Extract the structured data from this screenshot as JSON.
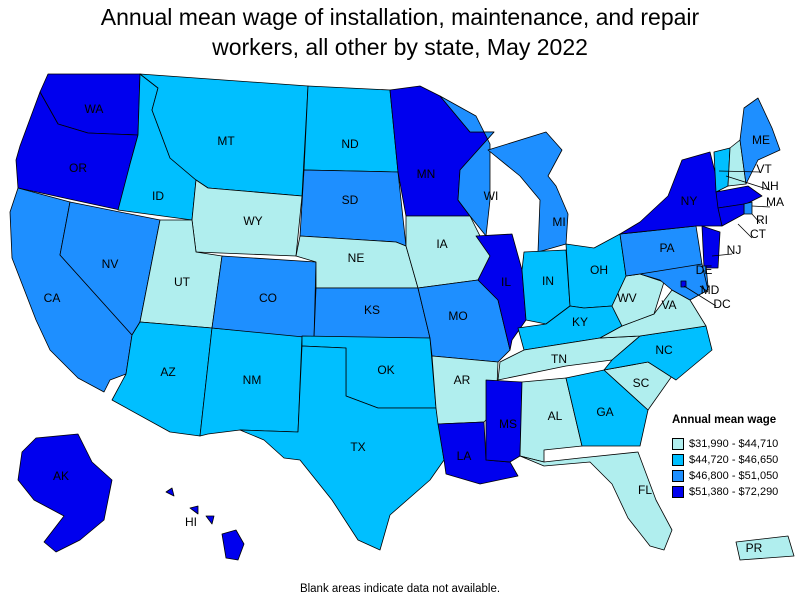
{
  "title_line1": "Annual mean wage of installation, maintenance, and repair",
  "title_line2": "workers, all other by state, May 2022",
  "legend": {
    "title": "Annual mean wage",
    "bins": [
      {
        "label": "$31,990 - $44,710",
        "color": "#b0eeee"
      },
      {
        "label": "$44,720 - $46,650",
        "color": "#00bfff"
      },
      {
        "label": "$46,800 - $51,050",
        "color": "#1e8fff"
      },
      {
        "label": "$51,380 - $72,290",
        "color": "#0000ee"
      }
    ]
  },
  "footnote": "Blank areas indicate data not available.",
  "states": {
    "WA": 3,
    "OR": 3,
    "CA": 2,
    "NV": 2,
    "ID": 1,
    "MT": 1,
    "WY": 0,
    "UT": 0,
    "AZ": 1,
    "NM": 1,
    "CO": 2,
    "ND": 1,
    "SD": 2,
    "NE": 0,
    "KS": 2,
    "OK": 1,
    "TX": 1,
    "MN": 3,
    "IA": 0,
    "MO": 2,
    "AR": 0,
    "LA": 3,
    "WI": 2,
    "IL": 3,
    "MS": 3,
    "MI": 2,
    "IN": 1,
    "OH": 1,
    "KY": 1,
    "TN": 0,
    "AL": 0,
    "GA": 1,
    "FL": 0,
    "SC": 0,
    "NC": 1,
    "VA": 0,
    "WV": 0,
    "PA": 2,
    "NY": 3,
    "VT": 1,
    "NH": 0,
    "ME": 2,
    "MA": 3,
    "RI": 2,
    "CT": 3,
    "NJ": 3,
    "DE": 2,
    "MD": 2,
    "DC": 3,
    "AK": 3,
    "HI": 3,
    "PR": 0
  },
  "state_labels": [
    "WA",
    "OR",
    "CA",
    "NV",
    "ID",
    "MT",
    "WY",
    "UT",
    "AZ",
    "NM",
    "CO",
    "ND",
    "SD",
    "NE",
    "KS",
    "OK",
    "TX",
    "MN",
    "IA",
    "MO",
    "AR",
    "LA",
    "WI",
    "IL",
    "MS",
    "MI",
    "IN",
    "OH",
    "KY",
    "TN",
    "AL",
    "GA",
    "FL",
    "SC",
    "NC",
    "VA",
    "WV",
    "PA",
    "NY",
    "VT",
    "NH",
    "ME",
    "MA",
    "RI",
    "CT",
    "NJ",
    "DE",
    "MD",
    "DC",
    "AK",
    "HI",
    "PR"
  ]
}
